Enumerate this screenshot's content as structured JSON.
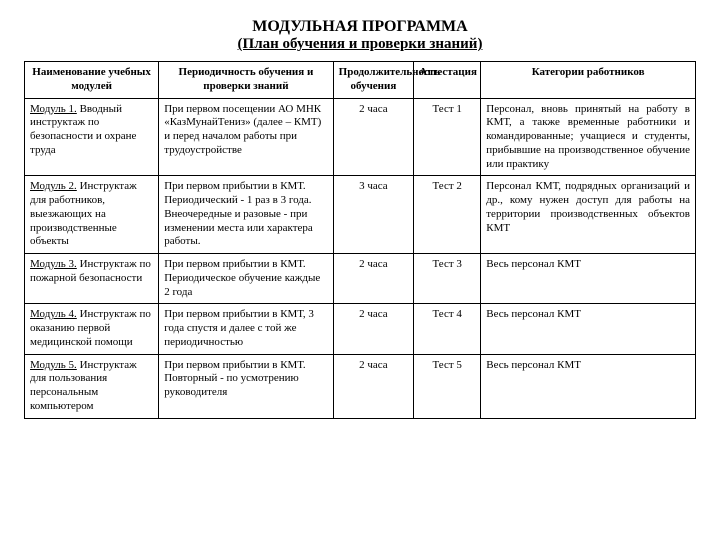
{
  "title": "МОДУЛЬНАЯ ПРОГРАММА",
  "subtitle": "(План обучения и проверки знаний)",
  "headers": {
    "c1": "Наименование учебных модулей",
    "c2": "Периодичность обучения и проверки знаний",
    "c3": "Продолжительность обучения",
    "c4": "Аттестация",
    "c5": "Категории работников"
  },
  "rows": [
    {
      "mod": "Модуль 1.",
      "name": " Вводный инструктаж по безопасности и охране труда",
      "period": "При первом посещении АО МНК «КазМунайТениз» (далее – КМТ) и перед началом работы при трудоустройстве",
      "dur": "2 часа",
      "att": "Тест 1",
      "cat": "Персонал, вновь принятый на работу в КМТ, а также временные работники и командированные; учащиеся и студенты, прибывшие на производственное обучение или практику"
    },
    {
      "mod": "Модуль 2.",
      "name": " Инструктаж для работников, выезжающих на производственные объекты",
      "period": "При первом прибытии в КМТ. Периодический - 1 раз в 3 года. Внеочередные и разовые - при изменении места или характера работы.",
      "dur": "3 часа",
      "att": "Тест 2",
      "cat": "Персонал КМТ, подрядных организаций и др., кому нужен доступ для работы на территории производственных объектов КМТ"
    },
    {
      "mod": "Модуль 3.",
      "name": " Инструктаж по пожарной безопасности",
      "period": "При первом прибытии в КМТ. Периодическое обучение каждые 2 года",
      "dur": "2 часа",
      "att": "Тест 3",
      "cat": "Весь персонал КМТ"
    },
    {
      "mod": "Модуль 4.",
      "name": " Инструктаж по оказанию первой медицинской помощи",
      "period": "При первом прибытии в КМТ, 3 года спустя и далее с той же периодичностью",
      "dur": "2 часа",
      "att": "Тест 4",
      "cat": "Весь персонал КМТ"
    },
    {
      "mod": "Модуль 5.",
      "name": " Инструктаж для пользования персональным компьютером",
      "period": "При первом прибытии в КМТ. Повторный - по усмотрению руководителя",
      "dur": "2 часа",
      "att": "Тест 5",
      "cat": "Весь персонал КМТ"
    }
  ]
}
